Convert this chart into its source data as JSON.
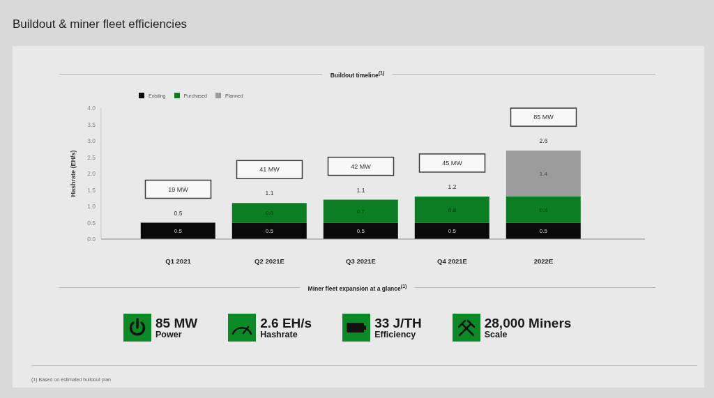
{
  "chart_data": [
    {
      "type": "bar",
      "title": "Buildout & miner fleet efficiencies",
      "subtitle": "Buildout timeline$^{(1)}$",
      "ylabel": "Hashrate (EH/s)",
      "categories": [
        "Q1 2021",
        "Q2 2021E",
        "Q3 2021E",
        "Q4 2021E",
        "2022E"
      ],
      "series": [
        {
          "name": "Existing",
          "color": "#0a0a0a",
          "values": [
            0.5,
            0.5,
            0.5,
            0.5,
            0.5
          ]
        },
        {
          "name": "Purchased",
          "color": "#0b7d22",
          "values": [
            null,
            0.6,
            0.7,
            0.8,
            0.8
          ]
        },
        {
          "name": "Planned",
          "color": "#9b9b9b",
          "values": [
            null,
            null,
            null,
            null,
            1.4
          ]
        }
      ],
      "stacked": true,
      "ylim": [
        0,
        4
      ],
      "yticks": [
        {
          "value": 0,
          "label": "0.0"
        },
        0.5,
        {
          "value": 1,
          "label": "1.0"
        },
        1.5,
        {
          "value": 2,
          "label": "2.0"
        },
        2.5,
        {
          "value": 3,
          "label": "3.0"
        },
        3.5,
        {
          "value": 4,
          "label": "4.0"
        }
      ],
      "legend": "top left",
      "data_labels": true,
      "totals": [
        "0.5",
        "1.1",
        "1.1",
        "1.2",
        "2.6"
      ],
      "annotations": [
        "19 MW",
        "41 MW",
        "42 MW",
        "45 MW",
        "85 MW",
        "(1) Based on estimated buildout plan"
      ]
    },
    {
      "type": "other",
      "title": "Miner fleet expansion at a glance$^{(1)}$",
      "annotations": [
        "85 MW",
        "Power",
        "2.6 EH/s",
        "Hashrate",
        "33 J/TH",
        "Efficiency",
        "28,000 Miners",
        "Scale"
      ]
    }
  ]
}
